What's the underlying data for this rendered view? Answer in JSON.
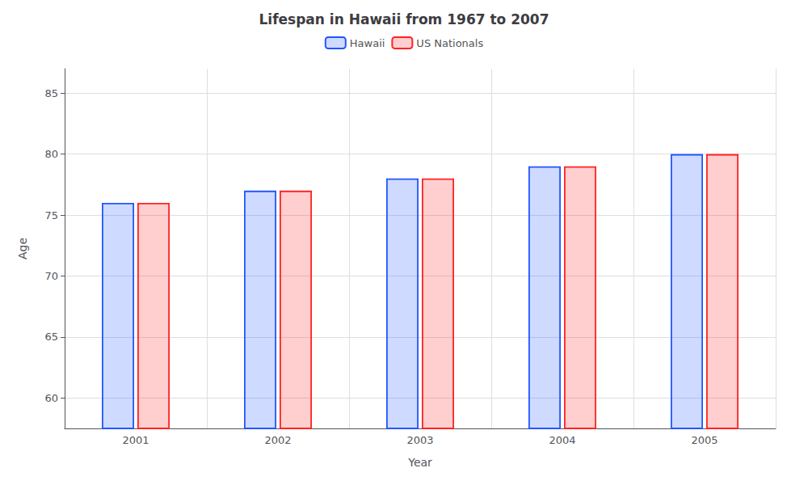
{
  "chart_data": {
    "type": "bar",
    "title": "Lifespan in Hawaii from 1967 to 2007",
    "xlabel": "Year",
    "ylabel": "Age",
    "categories": [
      "2001",
      "2002",
      "2003",
      "2004",
      "2005"
    ],
    "series": [
      {
        "name": "Hawaii",
        "color": "#2255ff",
        "values": [
          76,
          77,
          78,
          79,
          80
        ]
      },
      {
        "name": "US Nationals",
        "color": "#ff2222",
        "values": [
          76,
          77,
          78,
          79,
          80
        ]
      }
    ],
    "ylim": [
      57.5,
      87
    ],
    "yticks": [
      60,
      65,
      70,
      75,
      80,
      85
    ],
    "grid": true,
    "legend": "top"
  }
}
